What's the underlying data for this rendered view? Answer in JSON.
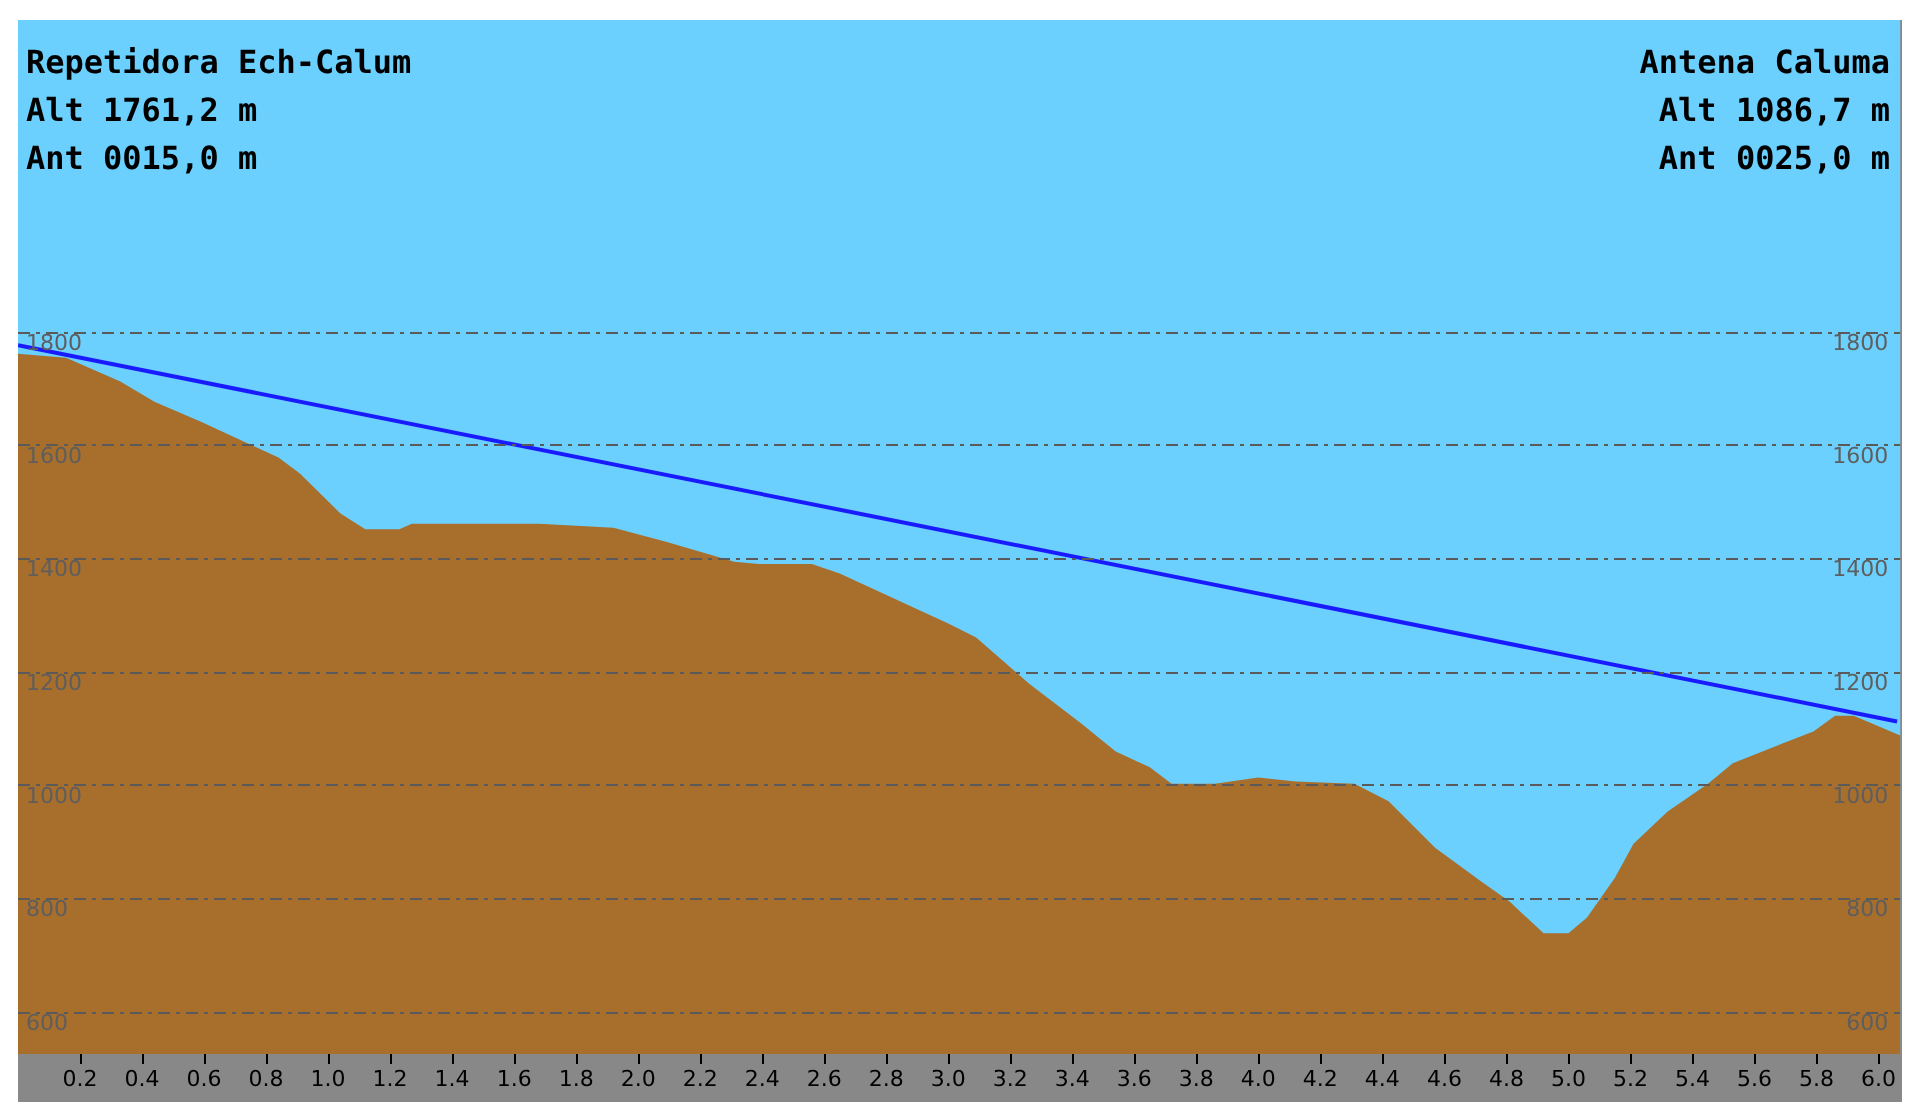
{
  "chart_data": {
    "type": "area",
    "annotations": [
      "Repetidora Ech-Calum",
      "Alt 1761,2 m",
      "Ant 0015,0 m",
      "Antena Caluma",
      "Alt 1086,7 m",
      "Ant 0025,0 m"
    ],
    "xlim": [
      0,
      6.07
    ],
    "xticks": [
      0.2,
      0.4,
      0.6,
      0.8,
      {
        "value": 1,
        "label": "1.0"
      },
      1.2,
      1.4,
      1.6,
      1.8,
      {
        "value": 2,
        "label": "2.0"
      },
      2.2,
      2.4,
      2.6,
      2.8,
      {
        "value": 3,
        "label": "3.0"
      },
      3.2,
      3.4,
      3.6,
      3.8,
      {
        "value": 4,
        "label": "4.0"
      },
      4.2,
      4.4,
      4.6,
      4.8,
      {
        "value": 5,
        "label": "5.0"
      },
      5.2,
      5.4,
      5.6,
      5.8,
      {
        "value": 6,
        "label": "6.0"
      }
    ],
    "ylim": [
      525,
      2350
    ],
    "yticks": [
      600,
      800,
      1000,
      1200,
      1400,
      1600,
      1800
    ],
    "y2lim": [
      525,
      2350
    ],
    "y2ticks": [
      600,
      800,
      1000,
      1200,
      1400,
      1600,
      1800
    ],
    "grid": "y",
    "series": [
      {
        "color": "#a86e2c",
        "x": [
          0,
          0.155,
          0.33,
          0.44,
          0.59,
          0.7,
          0.84,
          0.91,
          1.04,
          1.12,
          1.23,
          1.27,
          1.68,
          1.92,
          2.09,
          2.31,
          2.39,
          2.56,
          2.65,
          2.86,
          3.0,
          3.09,
          3.26,
          3.43,
          3.54,
          3.65,
          3.72,
          3.86,
          4.0,
          4.12,
          4.31,
          4.42,
          4.57,
          4.72,
          4.81,
          4.92,
          5.0,
          5.06,
          5.15,
          5.21,
          5.32,
          5.45,
          5.53,
          5.69,
          5.79,
          5.86,
          5.92,
          6.07
        ],
        "values": [
          1761,
          1754,
          1712,
          1676,
          1641,
          1613,
          1578,
          1549,
          1479,
          1451,
          1451,
          1461,
          1461,
          1454,
          1429,
          1394,
          1390,
          1390,
          1373,
          1320,
          1285,
          1260,
          1179,
          1108,
          1059,
          1031,
          1002,
          1002,
          1013,
          1006,
          1002,
          971,
          889,
          829,
          794,
          738,
          738,
          766,
          836,
          896,
          953,
          1002,
          1038,
          1073,
          1094,
          1122,
          1122,
          1087
        ]
      },
      {
        "type": "line",
        "color": "#1a1aff",
        "x": [
          0,
          6.06
        ],
        "values": [
          1776,
          1112
        ]
      }
    ]
  }
}
